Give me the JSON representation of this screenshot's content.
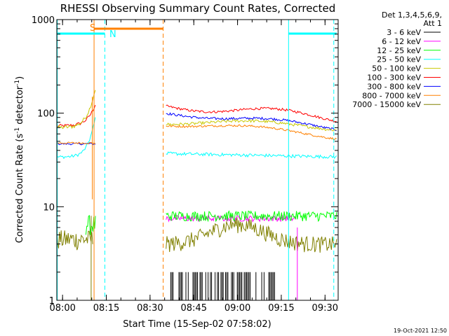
{
  "chart_data": {
    "type": "line",
    "title": "RHESSI Observing Summary Count Rates, Corrected",
    "xlabel": "Start Time (15-Sep-02 07:58:02)",
    "ylabel": "Corrected Count Rate (s",
    "ylabel_sup": "-1",
    "ylabel_mid": " detector",
    "ylabel_end": ")",
    "y_scale": "log",
    "ylim": [
      1,
      1000
    ],
    "xlim": [
      "07:58:02",
      "09:34:30"
    ],
    "x_ticks": [
      "08:00",
      "08:15",
      "08:30",
      "08:45",
      "09:00",
      "09:15",
      "09:30"
    ],
    "y_ticks": [
      "1",
      "10",
      "100",
      "1000"
    ],
    "legend_header": "Det 1,3,4,5,6,9,",
    "legend_header2": "Att 1",
    "legend_placement": "right",
    "series": [
      {
        "name": "3 - 6 keV",
        "color": "#000000"
      },
      {
        "name": "6 - 12 keV",
        "color": "#ff00ff"
      },
      {
        "name": "12 - 25 keV",
        "color": "#00ff00"
      },
      {
        "name": "25 - 50 keV",
        "color": "#00ffff"
      },
      {
        "name": "50 - 100 keV",
        "color": "#c8c800"
      },
      {
        "name": "100 - 300 keV",
        "color": "#ff0000"
      },
      {
        "name": "300 - 800 keV",
        "color": "#0000ff"
      },
      {
        "name": "800 - 7000 keV",
        "color": "#ff8000"
      },
      {
        "name": "7000 - 15000 keV",
        "color": "#808000"
      }
    ],
    "annotations": [
      {
        "label": "S",
        "color": "#ff8000"
      },
      {
        "label": "N",
        "color": "#00ffff"
      }
    ],
    "footer": "19-Oct-2021 12:50"
  }
}
